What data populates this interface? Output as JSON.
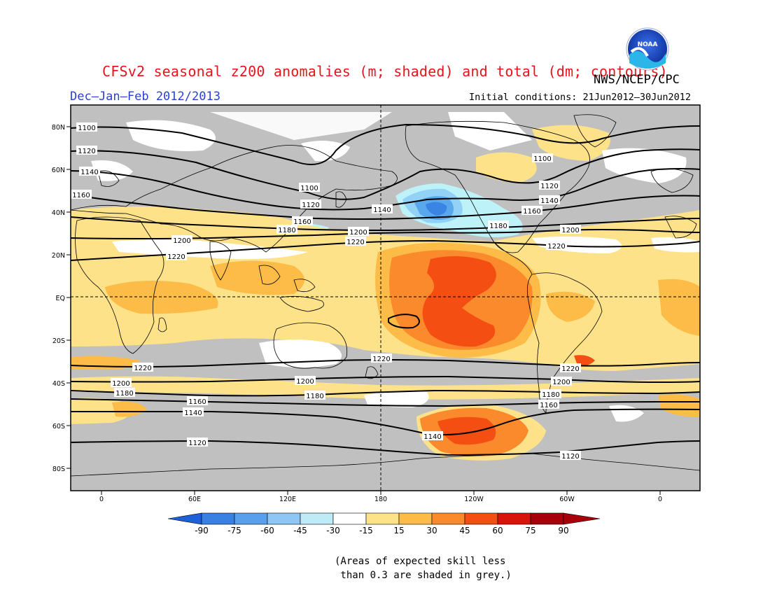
{
  "header": {
    "title": "CFSv2 seasonal z200 anomalies (m; shaded) and total (dm; contours)",
    "agency": "NWS/NCEP/CPC",
    "season": "Dec–Jan–Feb 2012/2013",
    "initial_conditions": "Initial conditions: 21Jun2012–30Jun2012",
    "logo_text": "NOAA"
  },
  "map": {
    "lat_labels": [
      "80N",
      "60N",
      "40N",
      "20N",
      "EQ",
      "20S",
      "40S",
      "60S",
      "80S"
    ],
    "lon_labels": [
      "0",
      "60E",
      "120E",
      "180",
      "120W",
      "60W",
      "0"
    ],
    "contour_labels": {
      "c1100": "1100",
      "c1120": "1120",
      "c1140": "1140",
      "c1160": "1160",
      "c1180": "1180",
      "c1200": "1200",
      "c1220": "1220"
    },
    "colors": {
      "skill_grey": "#c0c0c0",
      "neutral": "#ffffff",
      "pos15": "#fde28a",
      "pos30": "#fdbc48",
      "pos45": "#fb8a2c",
      "pos60": "#f44e12",
      "pos75": "#d8150c",
      "neg15": "#bdf2f8",
      "neg30": "#92d2f6",
      "neg45": "#5aa8ec",
      "neg60": "#3a84e4"
    }
  },
  "colorbar": {
    "ticks": [
      "-90",
      "-75",
      "-60",
      "-45",
      "-30",
      "-15",
      "15",
      "30",
      "45",
      "60",
      "75",
      "90"
    ],
    "colors": [
      "#1e60d8",
      "#3a80e2",
      "#5a9fec",
      "#8ec6f4",
      "#bdebf6",
      "#ffffff",
      "#fde28a",
      "#fdbc48",
      "#fb8a2c",
      "#f44e12",
      "#d8150c",
      "#a8000a"
    ],
    "low_color": "#1e60d8",
    "high_color": "#a8000a"
  },
  "note": "(Areas of expected skill less\n than 0.3 are shaded in grey.)"
}
